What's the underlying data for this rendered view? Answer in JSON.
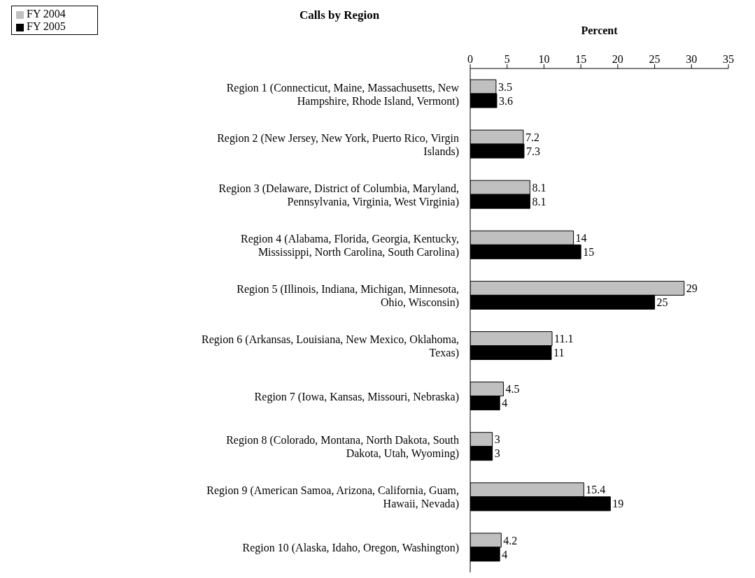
{
  "chart_data": {
    "type": "bar",
    "orientation": "horizontal",
    "title": "Calls by Region",
    "xlabel": "Percent",
    "categories": [
      "Region 1 (Connecticut, Maine, Massachusetts, New Hampshire, Rhode Island, Vermont)",
      "Region 2 (New Jersey, New York, Puerto Rico, Virgin Islands)",
      "Region 3 (Delaware, District of Columbia, Maryland, Pennsylvania, Virginia, West Virginia)",
      "Region 4 (Alabama, Florida, Georgia, Kentucky, Mississippi, North Carolina, South Carolina)",
      "Region 5 (Illinois, Indiana, Michigan, Minnesota, Ohio, Wisconsin)",
      "Region 6 (Arkansas, Louisiana, New Mexico, Oklahoma, Texas)",
      "Region 7 (Iowa, Kansas, Missouri, Nebraska)",
      "Region 8 (Colorado, Montana, North Dakota, South Dakota, Utah, Wyoming)",
      "Region 9 (American Samoa, Arizona, California, Guam, Hawaii, Nevada)",
      "Region 10 (Alaska, Idaho, Oregon, Washington)"
    ],
    "series": [
      {
        "name": "FY 2004",
        "color": "#c0c0c0",
        "values": [
          3.5,
          7.2,
          8.1,
          14,
          29,
          11.1,
          4.5,
          3,
          15.4,
          4.2
        ]
      },
      {
        "name": "FY 2005",
        "color": "#000000",
        "values": [
          3.6,
          7.3,
          8.1,
          15,
          25,
          11,
          4,
          3,
          19,
          4
        ]
      }
    ],
    "xlim": [
      0,
      35
    ],
    "xticks": [
      0,
      5,
      10,
      15,
      20,
      25,
      30,
      35
    ],
    "data_labels": true,
    "legend": "top left",
    "grid": false
  }
}
